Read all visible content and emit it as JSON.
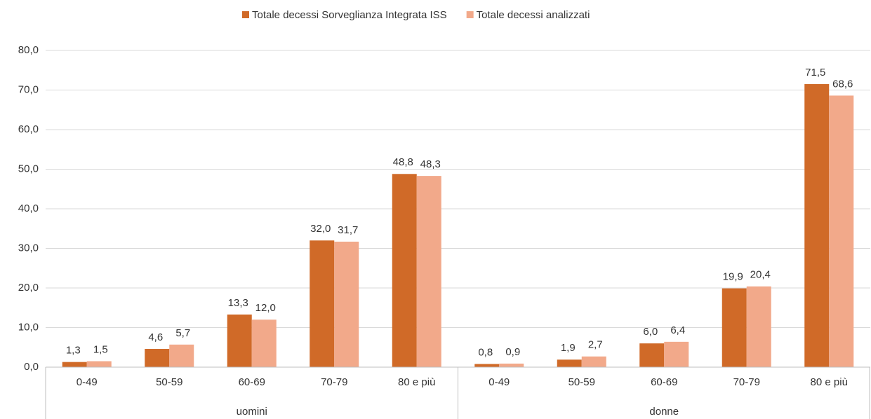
{
  "chart_data": {
    "type": "bar",
    "categories": [
      "0-49",
      "50-59",
      "60-69",
      "70-79",
      "80 e più",
      "0-49",
      "50-59",
      "60-69",
      "70-79",
      "80 e più"
    ],
    "groups": [
      "uomini",
      "donne"
    ],
    "series": [
      {
        "name": "Totale decessi Sorveglianza Integrata ISS",
        "color": "#d06a28",
        "values": [
          1.3,
          4.6,
          13.3,
          32.0,
          48.8,
          0.8,
          1.9,
          6.0,
          19.9,
          71.5
        ],
        "value_labels": [
          "1,3",
          "4,6",
          "13,3",
          "32,0",
          "48,8",
          "0,8",
          "1,9",
          "6,0",
          "19,9",
          "71,5"
        ]
      },
      {
        "name": "Totale decessi analizzati",
        "color": "#f2a98a",
        "values": [
          1.5,
          5.7,
          12.0,
          31.7,
          48.3,
          0.9,
          2.7,
          6.4,
          20.4,
          68.6
        ],
        "value_labels": [
          "1,5",
          "5,7",
          "12,0",
          "31,7",
          "48,3",
          "0,9",
          "2,7",
          "6,4",
          "20,4",
          "68,6"
        ]
      }
    ],
    "ylim": [
      0,
      80
    ],
    "yticks": [
      {
        "value": 0,
        "label": "0,0"
      },
      {
        "value": 10,
        "label": "10,0"
      },
      {
        "value": 20,
        "label": "20,0"
      },
      {
        "value": 30,
        "label": "30,0"
      },
      {
        "value": 40,
        "label": "40,0"
      },
      {
        "value": 50,
        "label": "50,0"
      },
      {
        "value": 60,
        "label": "60,0"
      },
      {
        "value": 70,
        "label": "70,0"
      },
      {
        "value": 80,
        "label": "80,0"
      }
    ],
    "grid": true,
    "legend": "top"
  }
}
